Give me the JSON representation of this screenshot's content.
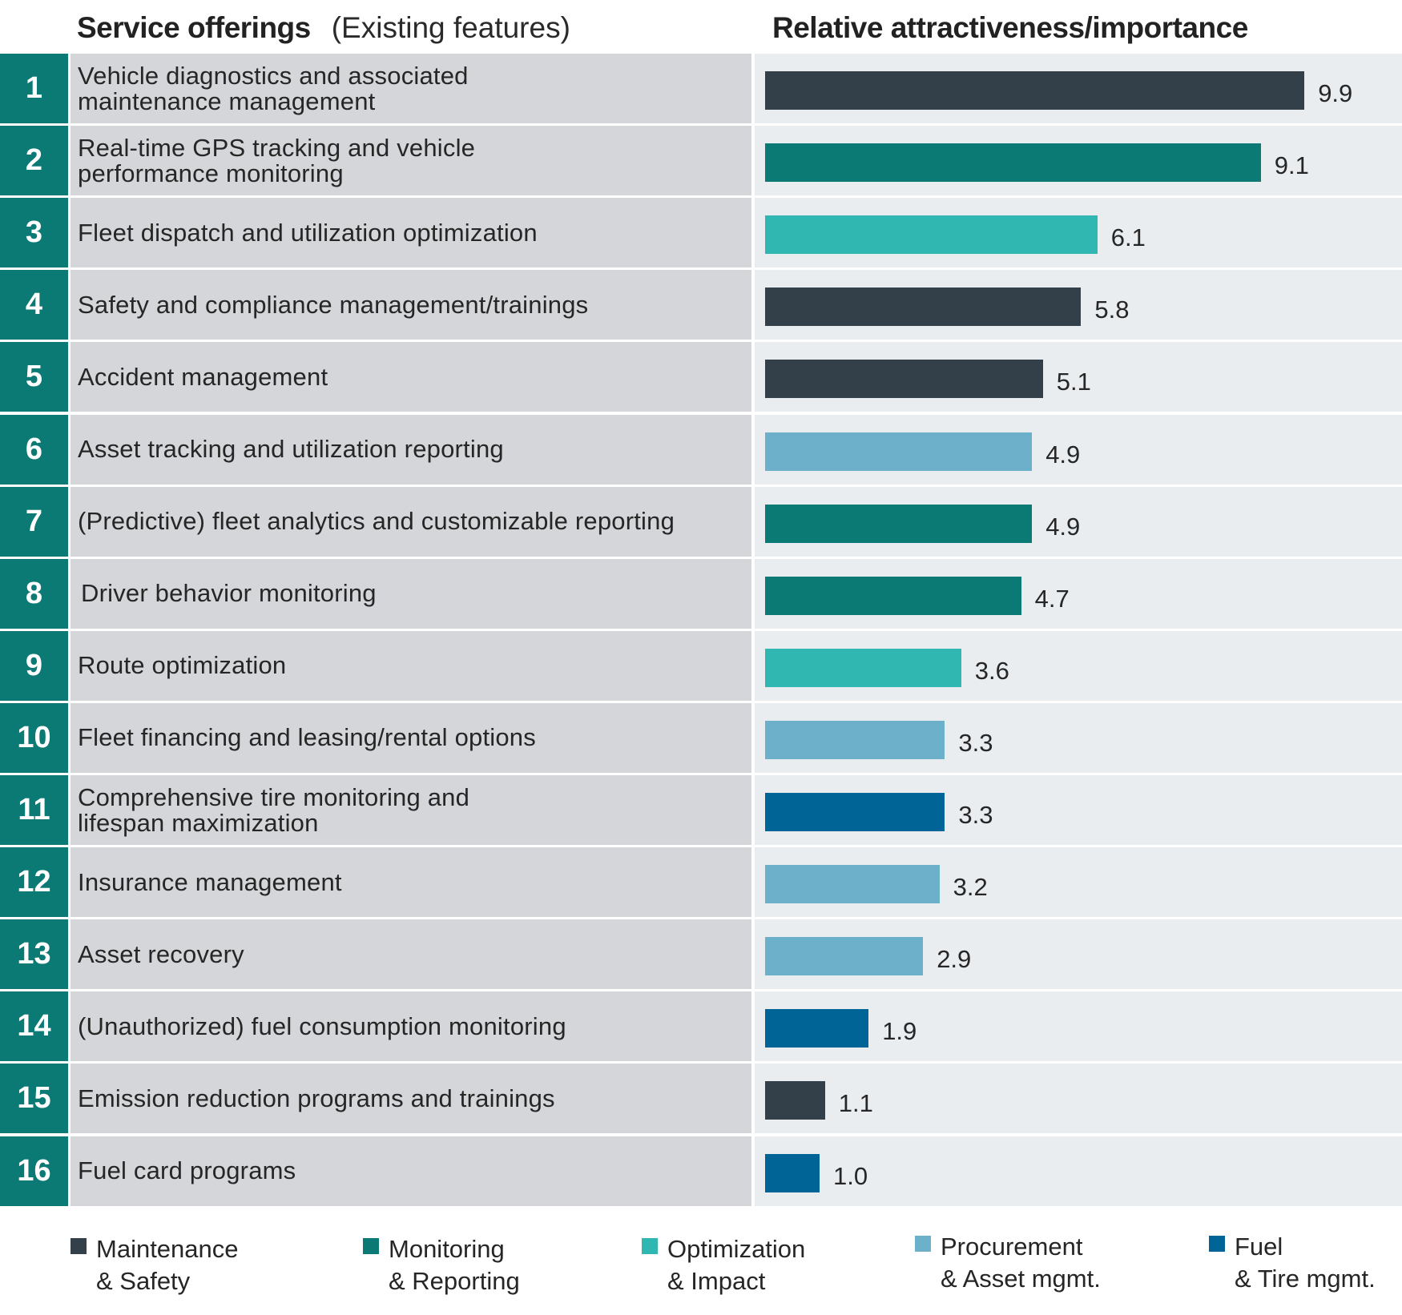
{
  "header": {
    "left_bold": "Service offerings",
    "left_light": "(Existing features)",
    "right": "Relative attractiveness/importance"
  },
  "categories_colors": {
    "Maintenance & Safety": "#33404a",
    "Monitoring & Reporting": "#0b7a75",
    "Optimization & Impact": "#31b7b2",
    "Procurement & Asset mgmt.": "#6db0c9",
    "Fuel & Tire mgmt.": "#006496"
  },
  "chart_data": {
    "type": "bar",
    "orientation": "horizontal",
    "title": "Relative attractiveness/importance",
    "xlabel": "",
    "ylabel": "Service offerings (Existing features)",
    "xlim": [
      0,
      10
    ],
    "grid": false,
    "legend_position": "bottom",
    "categories": [
      "Vehicle diagnostics and associated maintenance management",
      "Real-time GPS tracking and vehicle performance monitoring",
      "Fleet dispatch and utilization optimization",
      "Safety and compliance management/trainings",
      "Accident management",
      "Asset tracking and utilization reporting",
      "(Predictive) fleet analytics and customizable reporting",
      "Driver behavior monitoring",
      "Route optimization",
      "Fleet financing and leasing/rental options",
      "Comprehensive tire monitoring and lifespan maximization",
      "Insurance management",
      "Asset recovery",
      "(Unauthorized) fuel consumption monitoring",
      "Emission reduction programs and trainings",
      "Fuel card programs"
    ],
    "rows": [
      {
        "rank": "1",
        "label_lines": [
          "Vehicle diagnostics and associated",
          "maintenance management"
        ],
        "value": 9.9,
        "value_label": "9.9",
        "group": "Maintenance & Safety"
      },
      {
        "rank": "2",
        "label_lines": [
          "Real-time GPS tracking and vehicle",
          "performance monitoring"
        ],
        "value": 9.1,
        "value_label": "9.1",
        "group": "Monitoring & Reporting"
      },
      {
        "rank": "3",
        "label_lines": [
          "Fleet dispatch and utilization optimization"
        ],
        "value": 6.1,
        "value_label": "6.1",
        "group": "Optimization & Impact"
      },
      {
        "rank": "4",
        "label_lines": [
          "Safety and compliance management/trainings"
        ],
        "value": 5.8,
        "value_label": "5.8",
        "group": "Maintenance & Safety"
      },
      {
        "rank": "5",
        "label_lines": [
          "Accident management"
        ],
        "value": 5.1,
        "value_label": "5.1",
        "group": "Maintenance & Safety"
      },
      {
        "rank": "6",
        "label_lines": [
          "Asset tracking and utilization reporting"
        ],
        "value": 4.9,
        "value_label": "4.9",
        "group": "Procurement & Asset mgmt."
      },
      {
        "rank": "7",
        "label_lines": [
          "(Predictive) fleet analytics and customizable reporting"
        ],
        "value": 4.9,
        "value_label": "4.9",
        "group": "Monitoring & Reporting"
      },
      {
        "rank": "8",
        "label_lines": [
          "Driver behavior monitoring"
        ],
        "value": 4.7,
        "value_label": "4.7",
        "group": "Monitoring & Reporting"
      },
      {
        "rank": "9",
        "label_lines": [
          "Route optimization"
        ],
        "value": 3.6,
        "value_label": "3.6",
        "group": "Optimization & Impact"
      },
      {
        "rank": "10",
        "label_lines": [
          "Fleet financing and leasing/rental options"
        ],
        "value": 3.3,
        "value_label": "3.3",
        "group": "Procurement & Asset mgmt."
      },
      {
        "rank": "11",
        "label_lines": [
          "Comprehensive tire monitoring and",
          "lifespan maximization"
        ],
        "value": 3.3,
        "value_label": "3.3",
        "group": "Fuel & Tire mgmt."
      },
      {
        "rank": "12",
        "label_lines": [
          "Insurance management"
        ],
        "value": 3.2,
        "value_label": "3.2",
        "group": "Procurement & Asset mgmt."
      },
      {
        "rank": "13",
        "label_lines": [
          "Asset recovery"
        ],
        "value": 2.9,
        "value_label": "2.9",
        "group": "Procurement & Asset mgmt."
      },
      {
        "rank": "14",
        "label_lines": [
          "(Unauthorized) fuel consumption monitoring"
        ],
        "value": 1.9,
        "value_label": "1.9",
        "group": "Fuel & Tire mgmt."
      },
      {
        "rank": "15",
        "label_lines": [
          "Emission reduction programs and trainings"
        ],
        "value": 1.1,
        "value_label": "1.1",
        "group": "Maintenance & Safety"
      },
      {
        "rank": "16",
        "label_lines": [
          "Fuel card programs"
        ],
        "value": 1.0,
        "value_label": "1.0",
        "group": "Fuel & Tire mgmt."
      }
    ],
    "values": [
      9.9,
      9.1,
      6.1,
      5.8,
      5.1,
      4.9,
      4.9,
      4.7,
      3.6,
      3.3,
      3.3,
      3.2,
      2.9,
      1.9,
      1.1,
      1.0
    ],
    "legend": [
      {
        "name": "Maintenance & Safety",
        "line1": "Maintenance",
        "line2": "& Safety",
        "color": "#33404a"
      },
      {
        "name": "Monitoring & Reporting",
        "line1": "Monitoring",
        "line2": "& Reporting",
        "color": "#0b7a75"
      },
      {
        "name": "Optimization & Impact",
        "line1": "Optimization",
        "line2": "& Impact",
        "color": "#31b7b2"
      },
      {
        "name": "Procurement & Asset mgmt.",
        "line1": "Procurement",
        "line2": "& Asset mgmt.",
        "color": "#6db0c9"
      },
      {
        "name": "Fuel & Tire mgmt.",
        "line1": "Fuel",
        "line2": "& Tire mgmt.",
        "color": "#006496"
      }
    ]
  }
}
